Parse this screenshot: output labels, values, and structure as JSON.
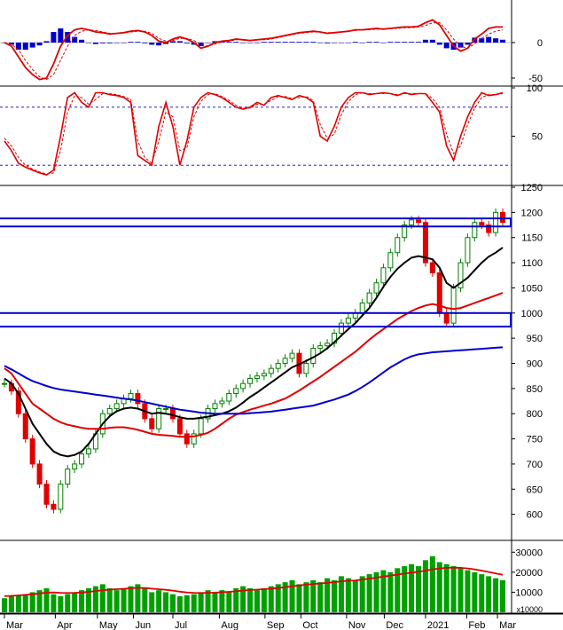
{
  "chart_data": [
    {
      "type": "line",
      "panel": "macd",
      "ylim": [
        -60,
        60
      ],
      "ytick_labels": [
        "0",
        "-50"
      ],
      "ytick_values": [
        0,
        -50
      ],
      "x": [
        0,
        8,
        16,
        24,
        32,
        40,
        48,
        56,
        64,
        72,
        80,
        88,
        96,
        104,
        112,
        120,
        128,
        136,
        144,
        152,
        160,
        168,
        176,
        184,
        192,
        200,
        208,
        216,
        224,
        232,
        240,
        248,
        256,
        264,
        272,
        280,
        288,
        296,
        304,
        312,
        320,
        328,
        336,
        344,
        352,
        360,
        368,
        376,
        384,
        392,
        400,
        408,
        416,
        424,
        432,
        440,
        448,
        456,
        464,
        472,
        480,
        488,
        496,
        504,
        512,
        520,
        528,
        536,
        544,
        552,
        560,
        568
      ],
      "series": [
        {
          "name": "",
          "color": "#e00000",
          "values": [
            0,
            -5,
            -20,
            -35,
            -45,
            -52,
            -50,
            -30,
            -5,
            10,
            18,
            20,
            18,
            15,
            14,
            12,
            13,
            14,
            16,
            17,
            15,
            10,
            2,
            0,
            5,
            8,
            5,
            0,
            -8,
            -5,
            0,
            2,
            3,
            5,
            4,
            3,
            4,
            5,
            6,
            8,
            10,
            12,
            14,
            15,
            16,
            15,
            13,
            14,
            15,
            16,
            18,
            18,
            19,
            20,
            19,
            20,
            21,
            22,
            22,
            23,
            28,
            32,
            25,
            10,
            -5,
            -12,
            -8,
            5,
            12,
            20,
            22,
            22
          ]
        },
        {
          "name": "",
          "color": "#e00000",
          "style": "dashed",
          "values": [
            0,
            -2,
            -10,
            -25,
            -38,
            -48,
            -52,
            -45,
            -25,
            -5,
            10,
            16,
            18,
            17,
            15,
            13,
            13,
            14,
            15,
            16,
            16,
            13,
            6,
            2,
            3,
            6,
            6,
            3,
            -3,
            -5,
            -2,
            1,
            2,
            4,
            4,
            3,
            4,
            4,
            5,
            7,
            9,
            11,
            13,
            14,
            15,
            15,
            14,
            14,
            15,
            16,
            17,
            18,
            18,
            19,
            19,
            20,
            20,
            21,
            21,
            22,
            24,
            28,
            28,
            18,
            5,
            -5,
            -8,
            -2,
            6,
            12,
            16,
            18
          ]
        },
        {
          "name": "",
          "color": "#0000cc",
          "type": "bar",
          "values": [
            0,
            -3,
            -10,
            -10,
            -7,
            -4,
            2,
            15,
            20,
            15,
            8,
            4,
            0,
            -2,
            -1,
            -1,
            0,
            0,
            1,
            1,
            -1,
            -3,
            -4,
            -2,
            2,
            2,
            -1,
            -3,
            -5,
            0,
            2,
            1,
            1,
            1,
            0,
            0,
            0,
            1,
            1,
            1,
            1,
            1,
            1,
            1,
            1,
            0,
            -1,
            0,
            0,
            0,
            1,
            0,
            1,
            1,
            0,
            1,
            1,
            1,
            1,
            1,
            4,
            4,
            -3,
            -8,
            -10,
            -7,
            -3,
            7,
            6,
            8,
            6,
            4
          ]
        }
      ]
    },
    {
      "type": "line",
      "panel": "stochastic",
      "ylim": [
        0,
        100
      ],
      "ytick_labels": [
        "100",
        "50"
      ],
      "ytick_values": [
        100,
        50
      ],
      "reference_lines": [
        80,
        20
      ],
      "x": [
        0,
        8,
        16,
        24,
        32,
        40,
        48,
        56,
        64,
        72,
        80,
        88,
        96,
        104,
        112,
        120,
        128,
        136,
        144,
        152,
        160,
        168,
        176,
        184,
        192,
        200,
        208,
        216,
        224,
        232,
        240,
        248,
        256,
        264,
        272,
        280,
        288,
        296,
        304,
        312,
        320,
        328,
        336,
        344,
        352,
        360,
        368,
        376,
        384,
        392,
        400,
        408,
        416,
        424,
        432,
        440,
        448,
        456,
        464,
        472,
        480,
        488,
        496,
        504,
        512,
        520,
        528,
        536,
        544,
        552,
        560,
        568
      ],
      "series": [
        {
          "name": "",
          "color": "#e00000",
          "values": [
            45,
            35,
            22,
            18,
            15,
            12,
            10,
            15,
            50,
            90,
            95,
            85,
            80,
            95,
            95,
            93,
            92,
            90,
            85,
            30,
            25,
            20,
            60,
            85,
            60,
            20,
            45,
            80,
            90,
            95,
            93,
            90,
            85,
            80,
            78,
            80,
            85,
            82,
            90,
            92,
            90,
            88,
            92,
            90,
            85,
            50,
            45,
            60,
            80,
            90,
            95,
            95,
            93,
            94,
            95,
            94,
            92,
            95,
            93,
            94,
            94,
            85,
            75,
            40,
            25,
            50,
            70,
            85,
            95,
            92,
            93,
            95
          ]
        },
        {
          "name": "",
          "color": "#e00000",
          "style": "dashed",
          "values": [
            48,
            40,
            28,
            20,
            16,
            13,
            11,
            12,
            35,
            75,
            92,
            90,
            83,
            88,
            94,
            94,
            93,
            91,
            88,
            45,
            28,
            22,
            45,
            75,
            70,
            35,
            38,
            70,
            86,
            93,
            94,
            91,
            87,
            82,
            79,
            79,
            83,
            83,
            87,
            91,
            91,
            89,
            90,
            91,
            87,
            62,
            48,
            52,
            72,
            86,
            93,
            95,
            94,
            94,
            94,
            94,
            93,
            94,
            94,
            94,
            94,
            89,
            80,
            52,
            32,
            40,
            62,
            79,
            90,
            93,
            93,
            94
          ]
        }
      ]
    },
    {
      "type": "candlestick",
      "panel": "price",
      "ylim": [
        550,
        1250
      ],
      "ytick_labels": [
        "1250",
        "1200",
        "1150",
        "1100",
        "1050",
        "1000",
        "950",
        "900",
        "850",
        "800",
        "750",
        "700",
        "650",
        "600"
      ],
      "ytick_values": [
        1250,
        1200,
        1150,
        1100,
        1050,
        1000,
        950,
        900,
        850,
        800,
        750,
        700,
        650,
        600
      ],
      "support_resistance_boxes": [
        {
          "from": 1172,
          "to": 1188,
          "color": "#0000cc"
        },
        {
          "from": 973,
          "to": 1000,
          "color": "#0000cc"
        }
      ],
      "x": [
        0,
        8,
        16,
        24,
        32,
        40,
        48,
        56,
        64,
        72,
        80,
        88,
        96,
        104,
        112,
        120,
        128,
        136,
        144,
        152,
        160,
        168,
        176,
        184,
        192,
        200,
        208,
        216,
        224,
        232,
        240,
        248,
        256,
        264,
        272,
        280,
        288,
        296,
        304,
        312,
        320,
        328,
        336,
        344,
        352,
        360,
        368,
        376,
        384,
        392,
        400,
        408,
        416,
        424,
        432,
        440,
        448,
        456,
        464,
        472,
        480,
        488,
        496,
        504,
        512,
        520,
        528,
        536,
        544,
        552,
        560,
        568
      ],
      "close": [
        860,
        845,
        800,
        750,
        700,
        660,
        620,
        610,
        660,
        690,
        700,
        720,
        730,
        760,
        800,
        810,
        820,
        830,
        840,
        820,
        790,
        770,
        810,
        810,
        790,
        760,
        740,
        760,
        790,
        810,
        820,
        825,
        840,
        850,
        860,
        870,
        875,
        880,
        890,
        900,
        910,
        920,
        880,
        900,
        930,
        935,
        940,
        960,
        980,
        990,
        1000,
        1020,
        1040,
        1060,
        1090,
        1120,
        1150,
        1175,
        1185,
        1180,
        1100,
        1080,
        1000,
        980,
        1050,
        1100,
        1150,
        1180,
        1175,
        1160,
        1200,
        1180
      ],
      "series": [
        {
          "name": "",
          "color": "#000000",
          "values": [
            870,
            860,
            840,
            810,
            780,
            760,
            740,
            725,
            718,
            715,
            718,
            725,
            740,
            760,
            780,
            795,
            805,
            810,
            812,
            810,
            805,
            800,
            802,
            800,
            797,
            793,
            790,
            790,
            792,
            794,
            797,
            800,
            805,
            812,
            822,
            833,
            842,
            852,
            862,
            872,
            882,
            892,
            898,
            905,
            912,
            920,
            930,
            942,
            955,
            968,
            980,
            995,
            1010,
            1030,
            1052,
            1072,
            1088,
            1100,
            1110,
            1113,
            1110,
            1107,
            1090,
            1060,
            1050,
            1060,
            1070,
            1085,
            1100,
            1112,
            1120,
            1130
          ]
        },
        {
          "name": "",
          "color": "#e00000",
          "values": [
            890,
            880,
            860,
            840,
            820,
            810,
            800,
            790,
            783,
            778,
            775,
            772,
            770,
            770,
            770,
            772,
            773,
            773,
            771,
            768,
            764,
            760,
            758,
            757,
            756,
            754,
            754,
            755,
            758,
            762,
            770,
            780,
            790,
            798,
            803,
            808,
            812,
            816,
            820,
            825,
            830,
            838,
            846,
            855,
            864,
            873,
            883,
            893,
            903,
            913,
            923,
            935,
            947,
            958,
            968,
            978,
            988,
            996,
            1004,
            1010,
            1015,
            1018,
            1015,
            1010,
            1008,
            1010,
            1015,
            1020,
            1025,
            1030,
            1035,
            1040
          ]
        },
        {
          "name": "",
          "color": "#0000cc",
          "values": [
            895,
            888,
            880,
            872,
            865,
            860,
            855,
            851,
            848,
            846,
            844,
            842,
            840,
            838,
            836,
            834,
            832,
            830,
            828,
            826,
            823,
            820,
            817,
            814,
            811,
            808,
            806,
            804,
            802,
            801,
            800,
            800,
            800,
            800,
            800,
            801,
            802,
            803,
            804,
            806,
            808,
            810,
            812,
            814,
            816,
            820,
            824,
            828,
            833,
            838,
            845,
            853,
            862,
            872,
            882,
            892,
            900,
            908,
            914,
            918,
            920,
            922,
            923,
            924,
            925,
            926,
            927,
            928,
            929,
            930,
            931,
            932
          ]
        }
      ]
    },
    {
      "type": "bar",
      "panel": "volume",
      "ylim": [
        0,
        35000
      ],
      "ytick_labels": [
        "30000",
        "20000",
        "10000"
      ],
      "ytick_values": [
        30000,
        20000,
        10000
      ],
      "unit_label": "x10000",
      "x": [
        0,
        8,
        16,
        24,
        32,
        40,
        48,
        56,
        64,
        72,
        80,
        88,
        96,
        104,
        112,
        120,
        128,
        136,
        144,
        152,
        160,
        168,
        176,
        184,
        192,
        200,
        208,
        216,
        224,
        232,
        240,
        248,
        256,
        264,
        272,
        280,
        288,
        296,
        304,
        312,
        320,
        328,
        336,
        344,
        352,
        360,
        368,
        376,
        384,
        392,
        400,
        408,
        416,
        424,
        432,
        440,
        448,
        456,
        464,
        472,
        480,
        488,
        496,
        504,
        512,
        520,
        528,
        536,
        544,
        552,
        560,
        568
      ],
      "values": [
        7000,
        8000,
        8500,
        9000,
        10000,
        11000,
        12000,
        9000,
        8000,
        9000,
        10000,
        11000,
        12000,
        13000,
        14000,
        12000,
        11000,
        12000,
        13000,
        14000,
        12000,
        10000,
        11000,
        10000,
        9000,
        8000,
        8500,
        9000,
        10000,
        11000,
        10000,
        11000,
        10500,
        12000,
        13000,
        12000,
        11000,
        12000,
        13000,
        14000,
        15000,
        16000,
        14000,
        15000,
        16000,
        15000,
        17000,
        16000,
        18000,
        17000,
        16000,
        18000,
        19000,
        20000,
        21000,
        20000,
        22000,
        23000,
        24000,
        23000,
        26000,
        28000,
        25000,
        24000,
        23000,
        22000,
        21000,
        20000,
        19000,
        18000,
        17000,
        16000
      ],
      "series": [
        {
          "name": "",
          "color": "#e00000",
          "values": [
            8000,
            8200,
            8400,
            8700,
            9000,
            9400,
            9800,
            9900,
            9700,
            9600,
            9700,
            9900,
            10200,
            10600,
            11000,
            11300,
            11500,
            11700,
            12000,
            12200,
            12100,
            11800,
            11500,
            11200,
            10800,
            10300,
            9900,
            9700,
            9600,
            9700,
            9800,
            10000,
            10200,
            10500,
            10800,
            11100,
            11300,
            11500,
            11800,
            12100,
            12500,
            13000,
            13400,
            13800,
            14100,
            14400,
            14700,
            15000,
            15400,
            15700,
            15900,
            16300,
            16800,
            17300,
            17800,
            18300,
            18800,
            19300,
            19800,
            20200,
            20800,
            21400,
            21900,
            22200,
            22300,
            22200,
            21900,
            21400,
            20800,
            20100,
            19400,
            18700
          ]
        }
      ]
    },
    {
      "type": "axis",
      "panel": "time",
      "tick_labels": [
        "Mar",
        "Apr",
        "May",
        "Jun",
        "Jul",
        "Aug",
        "Sep",
        "Oct",
        "Nov",
        "Dec",
        "2021",
        "Feb",
        "Mar"
      ],
      "tick_x": [
        0,
        58,
        106,
        147,
        192,
        245,
        297,
        338,
        390,
        433,
        480,
        527,
        562
      ]
    }
  ]
}
